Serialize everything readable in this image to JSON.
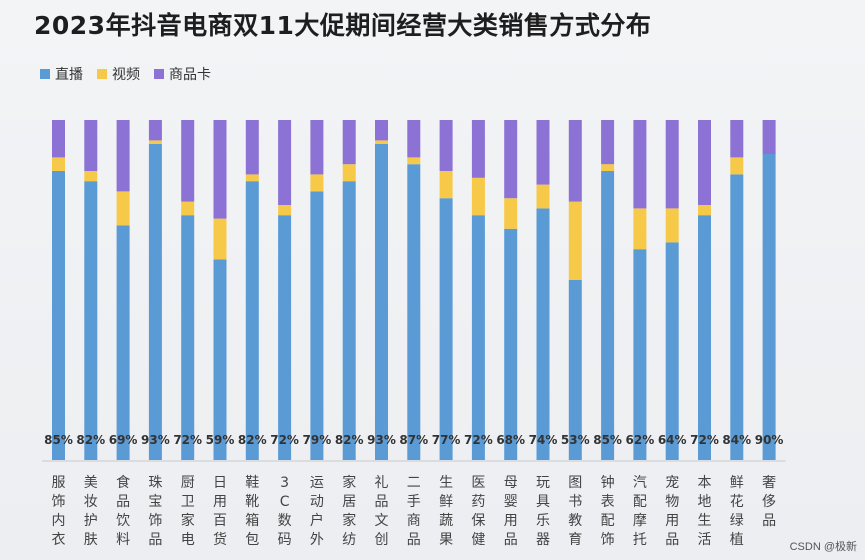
{
  "title": "2023年抖音电商双11大促期间经营大类销售方式分布",
  "watermark": "CSDN @极新",
  "colors": {
    "live": "#5b9bd5",
    "video": "#f7c948",
    "card": "#8c72d4"
  },
  "chart_data": {
    "type": "bar",
    "stacked": true,
    "normalized": true,
    "title": "2023年抖音电商双11大促期间经营大类销售方式分布",
    "categories": [
      "服饰内衣",
      "美妆护肤",
      "食品饮料",
      "珠宝饰品",
      "厨卫家电",
      "日用百货",
      "鞋靴箱包",
      "3C数码",
      "运动户外",
      "家居家纺",
      "礼品文创",
      "二手商品",
      "生鲜蔬果",
      "医药保健",
      "母婴用品",
      "玩具乐器",
      "图书教育",
      "钟表配饰",
      "汽配摩托",
      "宠物用品",
      "本地生活",
      "鲜花绿植",
      "奢侈品"
    ],
    "series": [
      {
        "name": "直播",
        "color": "#5b9bd5",
        "values": [
          85,
          82,
          69,
          93,
          72,
          59,
          82,
          72,
          79,
          82,
          93,
          87,
          77,
          72,
          68,
          74,
          53,
          85,
          62,
          64,
          72,
          84,
          90
        ]
      },
      {
        "name": "视频",
        "color": "#f7c948",
        "values": [
          4,
          3,
          10,
          1,
          4,
          12,
          2,
          3,
          5,
          5,
          1,
          2,
          8,
          11,
          9,
          7,
          23,
          2,
          12,
          10,
          3,
          5,
          0
        ]
      },
      {
        "name": "商品卡",
        "color": "#8c72d4",
        "values": [
          11,
          15,
          21,
          6,
          24,
          29,
          16,
          25,
          16,
          13,
          6,
          11,
          15,
          17,
          23,
          19,
          24,
          13,
          26,
          26,
          25,
          11,
          10
        ]
      }
    ],
    "data_labels": [
      "85%",
      "82%",
      "69%",
      "93%",
      "72%",
      "59%",
      "82%",
      "72%",
      "79%",
      "82%",
      "93%",
      "87%",
      "77%",
      "72%",
      "68%",
      "74%",
      "53%",
      "85%",
      "62%",
      "64%",
      "72%",
      "84%",
      "90%"
    ],
    "ylim": [
      0,
      100
    ],
    "legend": "top-left",
    "grid": false
  }
}
